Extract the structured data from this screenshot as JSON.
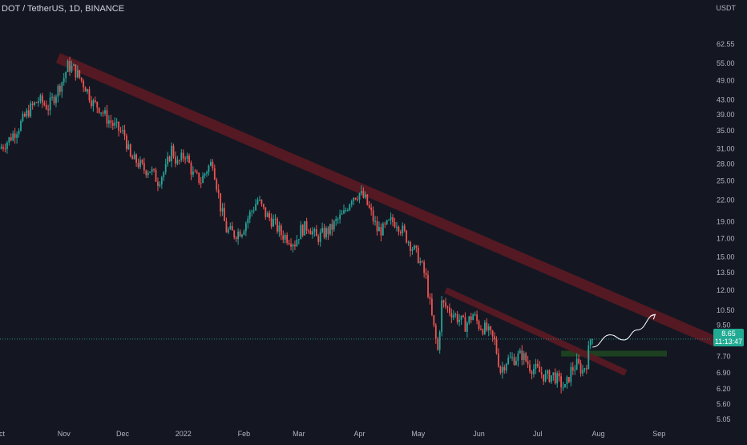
{
  "header": {
    "title": "DOT / TetherUS, 1D, BINANCE",
    "quote_currency": "USDT"
  },
  "price_tag": {
    "price": "8.65",
    "countdown": "11:13:47"
  },
  "colors": {
    "background": "#141722",
    "up": "#26a69a",
    "down": "#ef5350",
    "trendline": "#5c1a22",
    "support_zone": "#1e4620",
    "current_price_line": "#26a69a",
    "projection_arrow": "#ffffff"
  },
  "icons": [
    "projection-arrow-icon"
  ],
  "chart_data": {
    "type": "candlestick",
    "title": "DOT / TetherUS, 1D, BINANCE",
    "y_scale": "log",
    "y_unit": "USDT",
    "grid": false,
    "x_ticks": [
      "Oct",
      "Nov",
      "Dec",
      "2022",
      "Feb",
      "Mar",
      "Apr",
      "May",
      "Jun",
      "Jul",
      "Aug",
      "Sep"
    ],
    "x_tick_dates": [
      "2021-10-01",
      "2021-11-01",
      "2021-12-01",
      "2022-01-01",
      "2022-02-01",
      "2022-03-01",
      "2022-04-01",
      "2022-05-01",
      "2022-06-01",
      "2022-07-01",
      "2022-08-01",
      "2022-09-01"
    ],
    "y_ticks": [
      "62.55",
      "55.00",
      "49.00",
      "43.00",
      "39.00",
      "35.00",
      "31.00",
      "28.00",
      "25.00",
      "22.00",
      "19.00",
      "17.00",
      "15.00",
      "13.50",
      "12.00",
      "10.50",
      "9.50",
      "7.70",
      "6.90",
      "6.20",
      "5.60",
      "5.05"
    ],
    "y_tick_values": [
      62.55,
      55.0,
      49.0,
      43.0,
      39.0,
      35.0,
      31.0,
      28.0,
      25.0,
      22.0,
      19.0,
      17.0,
      15.0,
      13.5,
      12.0,
      10.5,
      9.5,
      7.7,
      6.9,
      6.2,
      5.6,
      5.05
    ],
    "price_path": [
      [
        "2021-09-30",
        31
      ],
      [
        "2021-10-05",
        33
      ],
      [
        "2021-10-10",
        36
      ],
      [
        "2021-10-15",
        40
      ],
      [
        "2021-10-20",
        43
      ],
      [
        "2021-10-25",
        41
      ],
      [
        "2021-10-28",
        44
      ],
      [
        "2021-11-02",
        50
      ],
      [
        "2021-11-04",
        54
      ],
      [
        "2021-11-07",
        53
      ],
      [
        "2021-11-10",
        50
      ],
      [
        "2021-11-13",
        47
      ],
      [
        "2021-11-17",
        42
      ],
      [
        "2021-11-20",
        41
      ],
      [
        "2021-11-24",
        38
      ],
      [
        "2021-11-28",
        36
      ],
      [
        "2021-12-03",
        34
      ],
      [
        "2021-12-06",
        29
      ],
      [
        "2021-12-09",
        28.5
      ],
      [
        "2021-12-13",
        27
      ],
      [
        "2021-12-16",
        27
      ],
      [
        "2021-12-20",
        25
      ],
      [
        "2021-12-24",
        27
      ],
      [
        "2021-12-27",
        31
      ],
      [
        "2021-12-30",
        28
      ],
      [
        "2022-01-03",
        30
      ],
      [
        "2022-01-07",
        26
      ],
      [
        "2022-01-11",
        25
      ],
      [
        "2022-01-14",
        27
      ],
      [
        "2022-01-17",
        28.5
      ],
      [
        "2022-01-21",
        21
      ],
      [
        "2022-01-24",
        18
      ],
      [
        "2022-01-28",
        17.5
      ],
      [
        "2022-02-01",
        18
      ],
      [
        "2022-02-05",
        20
      ],
      [
        "2022-02-09",
        22
      ],
      [
        "2022-02-13",
        20
      ],
      [
        "2022-02-17",
        19
      ],
      [
        "2022-02-21",
        17.5
      ],
      [
        "2022-02-25",
        17
      ],
      [
        "2022-02-28",
        16.5
      ],
      [
        "2022-03-03",
        18
      ],
      [
        "2022-03-07",
        18.5
      ],
      [
        "2022-03-11",
        17
      ],
      [
        "2022-03-14",
        17.5
      ],
      [
        "2022-03-18",
        18
      ],
      [
        "2022-03-21",
        19
      ],
      [
        "2022-03-25",
        20
      ],
      [
        "2022-03-29",
        22.5
      ],
      [
        "2022-04-02",
        23
      ],
      [
        "2022-04-05",
        22
      ],
      [
        "2022-04-08",
        20
      ],
      [
        "2022-04-11",
        18
      ],
      [
        "2022-04-14",
        18
      ],
      [
        "2022-04-18",
        19
      ],
      [
        "2022-04-21",
        19
      ],
      [
        "2022-04-25",
        17.5
      ],
      [
        "2022-04-29",
        16
      ],
      [
        "2022-05-02",
        15
      ],
      [
        "2022-05-06",
        13
      ],
      [
        "2022-05-09",
        10
      ],
      [
        "2022-05-12",
        8
      ],
      [
        "2022-05-14",
        11
      ],
      [
        "2022-05-18",
        10.5
      ],
      [
        "2022-05-22",
        10
      ],
      [
        "2022-05-26",
        9.5
      ],
      [
        "2022-05-30",
        10.2
      ],
      [
        "2022-06-02",
        9.5
      ],
      [
        "2022-06-06",
        9.2
      ],
      [
        "2022-06-10",
        8.5
      ],
      [
        "2022-06-13",
        7
      ],
      [
        "2022-06-16",
        7.5
      ],
      [
        "2022-06-20",
        7.6
      ],
      [
        "2022-06-24",
        7.8
      ],
      [
        "2022-06-28",
        7.2
      ],
      [
        "2022-07-02",
        7
      ],
      [
        "2022-07-06",
        6.7
      ],
      [
        "2022-07-10",
        6.8
      ],
      [
        "2022-07-13",
        6.5
      ],
      [
        "2022-07-16",
        6.2
      ],
      [
        "2022-07-19",
        7
      ],
      [
        "2022-07-22",
        7.3
      ],
      [
        "2022-07-25",
        7
      ],
      [
        "2022-07-27",
        7.4
      ],
      [
        "2022-07-29",
        8.65
      ]
    ],
    "annotations": [
      {
        "type": "trendline",
        "name": "upper-resistance",
        "points": [
          [
            "2021-10-29",
            57
          ],
          [
            "2022-09-30",
            8.5
          ]
        ]
      },
      {
        "type": "trendline",
        "name": "lower-resistance",
        "points": [
          [
            "2022-05-15",
            12
          ],
          [
            "2022-08-15",
            6.9
          ]
        ]
      },
      {
        "type": "zone",
        "name": "support-zone",
        "x": [
          "2022-07-13",
          "2022-09-05"
        ],
        "y": [
          7.7,
          8.0
        ]
      },
      {
        "type": "arrow",
        "name": "projection-path",
        "points": [
          [
            "2022-07-29",
            8.2
          ],
          [
            "2022-08-07",
            8.9
          ],
          [
            "2022-08-14",
            8.6
          ],
          [
            "2022-08-21",
            9.2
          ],
          [
            "2022-08-30",
            10.2
          ]
        ]
      },
      {
        "type": "horizontal_line",
        "name": "current-price-line",
        "y": 8.65
      }
    ]
  }
}
